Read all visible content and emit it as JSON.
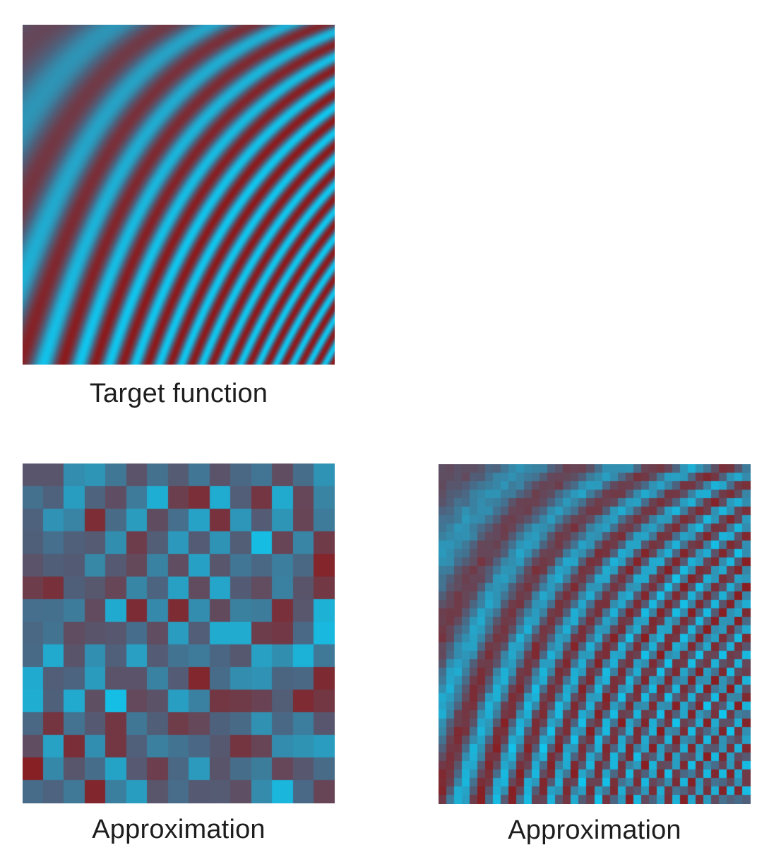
{
  "colors": {
    "background": "#ffffff",
    "red": "#8c1a1c",
    "cyan": "#10c6ee",
    "neutral": "#4c6480",
    "caption_text": "#1d1d1d"
  },
  "panels": [
    {
      "id": "target",
      "caption": "Target function",
      "resolution": "continuous"
    },
    {
      "id": "approx-coarse",
      "caption": "Approximation",
      "resolution": "coarse-grid"
    },
    {
      "id": "approx-fine",
      "caption": "Approximation",
      "resolution": "fine-grid"
    }
  ]
}
